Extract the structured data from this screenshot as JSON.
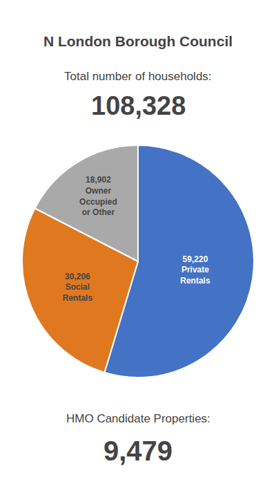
{
  "chart_data": {
    "type": "pie",
    "title": "N London Borough Council",
    "annotations": [
      "Total number of households:",
      "108,328",
      "HMO Candidate Properties:",
      "9,479"
    ],
    "values": [
      59220,
      30206,
      18902
    ],
    "value_labels": [
      "59,220\nPrivate\nRentals",
      "30,206\nSocial\nRentals",
      "18,902\nOwner\nOccupied\nor Other"
    ],
    "colors": [
      "#4472C4",
      "#E07820",
      "#A9A9A9"
    ],
    "data_labels": true
  }
}
